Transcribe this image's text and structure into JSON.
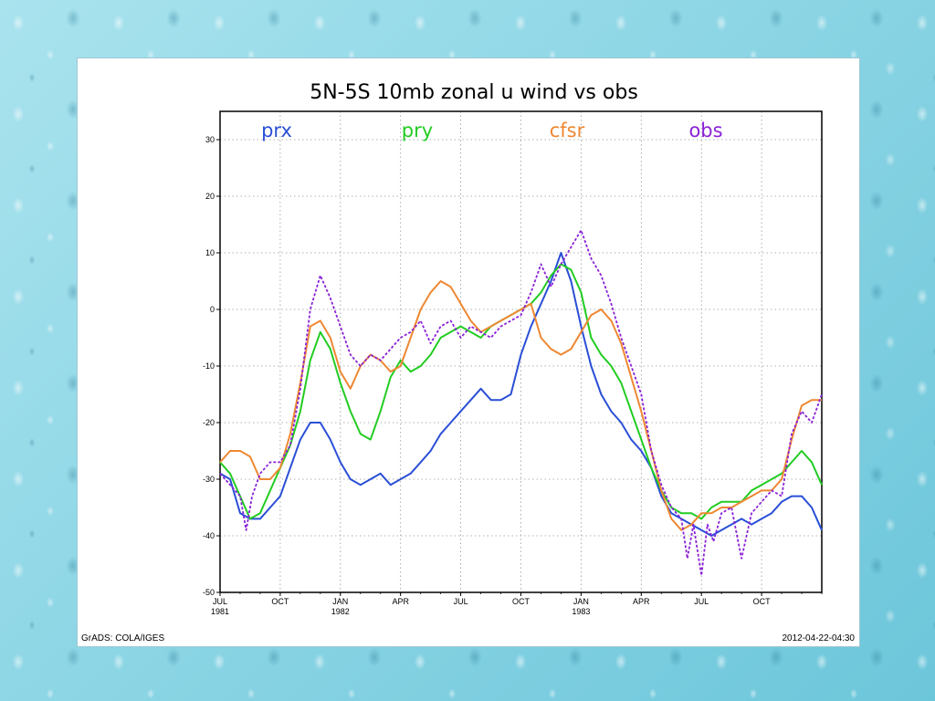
{
  "chart_data": {
    "type": "line",
    "title": "5N-5S 10mb zonal u wind vs obs",
    "footer_left": "GrADS: COLA/IGES",
    "footer_right": "2012-04-22-04:30",
    "ylim": [
      -50,
      35
    ],
    "yticks": [
      30,
      20,
      10,
      0,
      -10,
      -20,
      -30,
      -40,
      -50
    ],
    "ytick_labels": [
      "30",
      "20",
      "10",
      "0",
      "-10",
      "-20",
      "-30",
      "-40",
      "-50"
    ],
    "xlim": [
      0,
      30
    ],
    "xticks": [
      {
        "x": 0,
        "label": "JUL",
        "year": "1981"
      },
      {
        "x": 3,
        "label": "OCT",
        "year": ""
      },
      {
        "x": 6,
        "label": "JAN",
        "year": "1982"
      },
      {
        "x": 9,
        "label": "APR",
        "year": ""
      },
      {
        "x": 12,
        "label": "JUL",
        "year": ""
      },
      {
        "x": 15,
        "label": "OCT",
        "year": ""
      },
      {
        "x": 18,
        "label": "JAN",
        "year": "1983"
      },
      {
        "x": 21,
        "label": "APR",
        "year": ""
      },
      {
        "x": 24,
        "label": "JUL",
        "year": ""
      },
      {
        "x": 27,
        "label": "OCT",
        "year": ""
      }
    ],
    "grid": true,
    "series": [
      {
        "name": "prx",
        "color": "#2a4fd6",
        "dashed": false,
        "points": [
          [
            0,
            -29
          ],
          [
            0.5,
            -30
          ],
          [
            1,
            -36
          ],
          [
            1.5,
            -37
          ],
          [
            2,
            -37
          ],
          [
            2.5,
            -35
          ],
          [
            3,
            -33
          ],
          [
            3.5,
            -28
          ],
          [
            4,
            -23
          ],
          [
            4.5,
            -20
          ],
          [
            5,
            -20
          ],
          [
            5.5,
            -23
          ],
          [
            6,
            -27
          ],
          [
            6.5,
            -30
          ],
          [
            7,
            -31
          ],
          [
            7.5,
            -30
          ],
          [
            8,
            -29
          ],
          [
            8.5,
            -31
          ],
          [
            9,
            -30
          ],
          [
            9.5,
            -29
          ],
          [
            10,
            -27
          ],
          [
            10.5,
            -25
          ],
          [
            11,
            -22
          ],
          [
            11.5,
            -20
          ],
          [
            12,
            -18
          ],
          [
            12.5,
            -16
          ],
          [
            13,
            -14
          ],
          [
            13.5,
            -16
          ],
          [
            14,
            -16
          ],
          [
            14.5,
            -15
          ],
          [
            15,
            -8
          ],
          [
            15.5,
            -3
          ],
          [
            16,
            1
          ],
          [
            16.5,
            5
          ],
          [
            17,
            10
          ],
          [
            17.5,
            5
          ],
          [
            18,
            -3
          ],
          [
            18.5,
            -10
          ],
          [
            19,
            -15
          ],
          [
            19.5,
            -18
          ],
          [
            20,
            -20
          ],
          [
            20.5,
            -23
          ],
          [
            21,
            -25
          ],
          [
            21.5,
            -28
          ],
          [
            22,
            -33
          ],
          [
            22.5,
            -36
          ],
          [
            23,
            -37
          ],
          [
            23.5,
            -38
          ],
          [
            24,
            -39
          ],
          [
            24.5,
            -40
          ],
          [
            25,
            -39
          ],
          [
            25.5,
            -38
          ],
          [
            26,
            -37
          ],
          [
            26.5,
            -38
          ],
          [
            27,
            -37
          ],
          [
            27.5,
            -36
          ],
          [
            28,
            -34
          ],
          [
            28.5,
            -33
          ],
          [
            29,
            -33
          ],
          [
            29.5,
            -35
          ],
          [
            30,
            -39
          ]
        ]
      },
      {
        "name": "pry",
        "color": "#22cc22",
        "dashed": false,
        "points": [
          [
            0,
            -27
          ],
          [
            0.5,
            -29
          ],
          [
            1,
            -33
          ],
          [
            1.5,
            -37
          ],
          [
            2,
            -36
          ],
          [
            2.5,
            -32
          ],
          [
            3,
            -28
          ],
          [
            3.5,
            -24
          ],
          [
            4,
            -18
          ],
          [
            4.5,
            -9
          ],
          [
            5,
            -4
          ],
          [
            5.5,
            -7
          ],
          [
            6,
            -13
          ],
          [
            6.5,
            -18
          ],
          [
            7,
            -22
          ],
          [
            7.5,
            -23
          ],
          [
            8,
            -18
          ],
          [
            8.5,
            -12
          ],
          [
            9,
            -9
          ],
          [
            9.5,
            -11
          ],
          [
            10,
            -10
          ],
          [
            10.5,
            -8
          ],
          [
            11,
            -5
          ],
          [
            11.5,
            -4
          ],
          [
            12,
            -3
          ],
          [
            12.5,
            -4
          ],
          [
            13,
            -5
          ],
          [
            13.5,
            -3
          ],
          [
            14,
            -2
          ],
          [
            14.5,
            -1
          ],
          [
            15,
            0
          ],
          [
            15.5,
            1
          ],
          [
            16,
            3
          ],
          [
            16.5,
            6
          ],
          [
            17,
            8
          ],
          [
            17.5,
            7
          ],
          [
            18,
            3
          ],
          [
            18.5,
            -5
          ],
          [
            19,
            -8
          ],
          [
            19.5,
            -10
          ],
          [
            20,
            -13
          ],
          [
            20.5,
            -18
          ],
          [
            21,
            -23
          ],
          [
            21.5,
            -28
          ],
          [
            22,
            -32
          ],
          [
            22.5,
            -35
          ],
          [
            23,
            -36
          ],
          [
            23.5,
            -36
          ],
          [
            24,
            -37
          ],
          [
            24.5,
            -35
          ],
          [
            25,
            -34
          ],
          [
            25.5,
            -34
          ],
          [
            26,
            -34
          ],
          [
            26.5,
            -32
          ],
          [
            27,
            -31
          ],
          [
            27.5,
            -30
          ],
          [
            28,
            -29
          ],
          [
            28.5,
            -27
          ],
          [
            29,
            -25
          ],
          [
            29.5,
            -27
          ],
          [
            30,
            -31
          ]
        ]
      },
      {
        "name": "cfsr",
        "color": "#ee8833",
        "dashed": false,
        "points": [
          [
            0,
            -27
          ],
          [
            0.5,
            -25
          ],
          [
            1,
            -25
          ],
          [
            1.5,
            -26
          ],
          [
            2,
            -30
          ],
          [
            2.5,
            -30
          ],
          [
            3,
            -28
          ],
          [
            3.5,
            -22
          ],
          [
            4,
            -13
          ],
          [
            4.5,
            -3
          ],
          [
            5,
            -2
          ],
          [
            5.5,
            -5
          ],
          [
            6,
            -11
          ],
          [
            6.5,
            -14
          ],
          [
            7,
            -10
          ],
          [
            7.5,
            -8
          ],
          [
            8,
            -9
          ],
          [
            8.5,
            -11
          ],
          [
            9,
            -10
          ],
          [
            9.5,
            -5
          ],
          [
            10,
            0
          ],
          [
            10.5,
            3
          ],
          [
            11,
            5
          ],
          [
            11.5,
            4
          ],
          [
            12,
            1
          ],
          [
            12.5,
            -2
          ],
          [
            13,
            -4
          ],
          [
            13.5,
            -3
          ],
          [
            14,
            -2
          ],
          [
            14.5,
            -1
          ],
          [
            15,
            0
          ],
          [
            15.5,
            1
          ],
          [
            16,
            -5
          ],
          [
            16.5,
            -7
          ],
          [
            17,
            -8
          ],
          [
            17.5,
            -7
          ],
          [
            18,
            -4
          ],
          [
            18.5,
            -1
          ],
          [
            19,
            0
          ],
          [
            19.5,
            -2
          ],
          [
            20,
            -6
          ],
          [
            20.5,
            -12
          ],
          [
            21,
            -18
          ],
          [
            21.5,
            -25
          ],
          [
            22,
            -32
          ],
          [
            22.5,
            -37
          ],
          [
            23,
            -39
          ],
          [
            23.5,
            -38
          ],
          [
            24,
            -36
          ],
          [
            24.5,
            -36
          ],
          [
            25,
            -35
          ],
          [
            25.5,
            -35
          ],
          [
            26,
            -34
          ],
          [
            26.5,
            -33
          ],
          [
            27,
            -32
          ],
          [
            27.5,
            -32
          ],
          [
            28,
            -30
          ],
          [
            28.5,
            -23
          ],
          [
            29,
            -17
          ],
          [
            29.5,
            -16
          ],
          [
            30,
            -16
          ]
        ]
      },
      {
        "name": "obs",
        "color": "#8a22d6",
        "dashed": true,
        "points": [
          [
            0,
            -29
          ],
          [
            0.5,
            -31
          ],
          [
            1,
            -33
          ],
          [
            1.3,
            -39
          ],
          [
            1.6,
            -33
          ],
          [
            2,
            -29
          ],
          [
            2.5,
            -27
          ],
          [
            3,
            -27
          ],
          [
            3.5,
            -24
          ],
          [
            4,
            -14
          ],
          [
            4.5,
            0
          ],
          [
            5,
            6
          ],
          [
            5.5,
            2
          ],
          [
            6,
            -3
          ],
          [
            6.5,
            -8
          ],
          [
            7,
            -10
          ],
          [
            7.5,
            -8
          ],
          [
            8,
            -9
          ],
          [
            8.5,
            -7
          ],
          [
            9,
            -5
          ],
          [
            9.5,
            -4
          ],
          [
            10,
            -2
          ],
          [
            10.5,
            -6
          ],
          [
            11,
            -3
          ],
          [
            11.5,
            -2
          ],
          [
            12,
            -5
          ],
          [
            12.5,
            -3
          ],
          [
            13,
            -4
          ],
          [
            13.5,
            -5
          ],
          [
            14,
            -3
          ],
          [
            14.5,
            -2
          ],
          [
            15,
            -1
          ],
          [
            15.5,
            3
          ],
          [
            16,
            8
          ],
          [
            16.5,
            4
          ],
          [
            17,
            8
          ],
          [
            17.5,
            11
          ],
          [
            18,
            14
          ],
          [
            18.5,
            9
          ],
          [
            19,
            6
          ],
          [
            19.5,
            1
          ],
          [
            20,
            -5
          ],
          [
            20.5,
            -10
          ],
          [
            21,
            -15
          ],
          [
            21.5,
            -25
          ],
          [
            22,
            -31
          ],
          [
            22.5,
            -35
          ],
          [
            23,
            -37
          ],
          [
            23.3,
            -44
          ],
          [
            23.6,
            -38
          ],
          [
            24,
            -47
          ],
          [
            24.3,
            -38
          ],
          [
            24.6,
            -41
          ],
          [
            25,
            -36
          ],
          [
            25.5,
            -35
          ],
          [
            26,
            -44
          ],
          [
            26.5,
            -36
          ],
          [
            27,
            -34
          ],
          [
            27.5,
            -32
          ],
          [
            28,
            -33
          ],
          [
            28.5,
            -22
          ],
          [
            29,
            -18
          ],
          [
            29.5,
            -20
          ],
          [
            30,
            -15
          ]
        ]
      }
    ]
  }
}
